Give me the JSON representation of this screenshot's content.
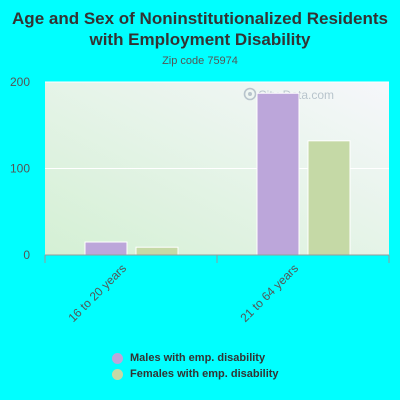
{
  "chart_data": {
    "type": "bar",
    "title": "Age and Sex of Noninstitutionalized Residents with Employment Disability",
    "subtitle": "Zip code 75974",
    "categories": [
      "16 to 20 years",
      "21 to 64 years"
    ],
    "series": [
      {
        "name": "Males with emp. disability",
        "values": [
          15,
          187
        ],
        "color": "#bca6da"
      },
      {
        "name": "Females with emp. disability",
        "values": [
          9,
          132
        ],
        "color": "#c5d9a6"
      }
    ],
    "ylim": [
      0,
      200
    ],
    "yticks": [
      0,
      100,
      200
    ],
    "grid": true,
    "legend_position": "bottom",
    "watermark": "City-Data.com"
  }
}
